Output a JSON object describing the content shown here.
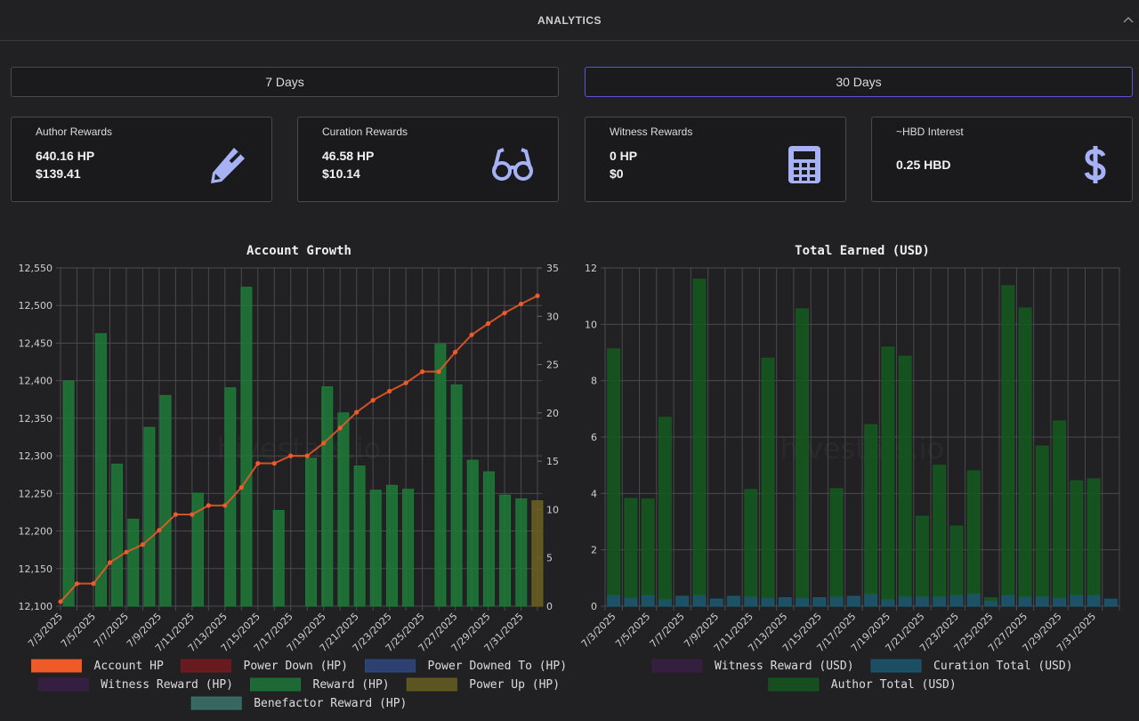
{
  "header": {
    "title": "ANALYTICS"
  },
  "buttons": [
    "7 Days",
    "30 Days"
  ],
  "cards": [
    {
      "label": "Author Rewards",
      "lines": [
        "640.16 HP",
        "$139.41"
      ]
    },
    {
      "label": "Curation Rewards",
      "lines": [
        "46.58 HP",
        "$10.14"
      ]
    },
    {
      "label": "Witness Rewards",
      "lines": [
        "0 HP",
        "$0"
      ]
    },
    {
      "label": "~HBD Interest",
      "lines": [
        "0.25 HBD"
      ]
    }
  ],
  "chart_data": [
    {
      "type": "combo",
      "title": "Account Growth",
      "watermark": "hivestats.io",
      "categories": [
        "7/3/2025",
        null,
        "7/5/2025",
        null,
        "7/7/2025",
        null,
        "7/9/2025",
        null,
        "7/11/2025",
        null,
        "7/13/2025",
        null,
        "7/15/2025",
        null,
        "7/17/2025",
        null,
        "7/19/2025",
        null,
        "7/21/2025",
        null,
        "7/23/2025",
        null,
        "7/25/2025",
        null,
        "7/27/2025",
        null,
        "7/29/2025",
        null,
        "7/31/2025",
        null
      ],
      "ylim": [
        12100,
        12550
      ],
      "yticks": [
        {
          "value": 12100,
          "label": "12,100"
        },
        {
          "value": 12150,
          "label": "12,150"
        },
        {
          "value": 12200,
          "label": "12,200"
        },
        {
          "value": 12250,
          "label": "12,250"
        },
        {
          "value": 12300,
          "label": "12,300"
        },
        {
          "value": 12350,
          "label": "12,350"
        },
        {
          "value": 12400,
          "label": "12,400"
        },
        {
          "value": 12450,
          "label": "12,450"
        },
        {
          "value": 12500,
          "label": "12,500"
        },
        {
          "value": 12550,
          "label": "12,550"
        }
      ],
      "y2lim": [
        0,
        35
      ],
      "y2ticks": [
        0,
        5,
        10,
        15,
        20,
        25,
        30,
        35
      ],
      "grid": true,
      "series": [
        {
          "name": "Account HP",
          "color": "#f05a28",
          "type": "line",
          "values": [
            12106,
            12130,
            12130,
            12158,
            12172,
            12182,
            12201,
            12222,
            12222,
            12234,
            12234,
            12258,
            12290,
            12290,
            12300,
            12300,
            12317,
            12337,
            12358,
            12374,
            12386,
            12397,
            12412,
            12412,
            12438,
            12461,
            12476,
            12490,
            12502,
            12513
          ]
        },
        {
          "name": "Power Down (HP)",
          "color": "#7a1a1e",
          "axis": "y2",
          "values": [
            0,
            0,
            0,
            0,
            0,
            0,
            0,
            0,
            0,
            0,
            0,
            0,
            0,
            0,
            0,
            0,
            0,
            0,
            0,
            0,
            0,
            0,
            0,
            0,
            0,
            0,
            0,
            0,
            0,
            0
          ]
        },
        {
          "name": "Power Downed To (HP)",
          "color": "#2f4a86",
          "axis": "y2",
          "values": [
            0,
            0,
            0,
            0,
            0,
            0,
            0,
            0,
            0,
            0,
            0,
            0,
            0,
            0,
            0,
            0,
            0,
            0,
            0,
            0,
            0,
            0,
            0,
            0,
            0,
            0,
            0,
            0,
            0,
            0
          ]
        },
        {
          "name": "Witness Reward (HP)",
          "color": "#3b1f48",
          "axis": "y2",
          "values": [
            0,
            0,
            0,
            0,
            0,
            0,
            0,
            0,
            0,
            0,
            0,
            0,
            0,
            0,
            0,
            0,
            0,
            0,
            0,
            0,
            0,
            0,
            0,
            0,
            0,
            0,
            0,
            0,
            0,
            0
          ]
        },
        {
          "name": "Reward (HP)",
          "color": "#1d7a38",
          "axis": "y2",
          "values": [
            23.3,
            0,
            28.2,
            14.7,
            9.0,
            18.5,
            21.8,
            0,
            11.7,
            0,
            22.6,
            33.0,
            0,
            9.9,
            0,
            15.3,
            22.7,
            20.0,
            14.5,
            12.0,
            12.5,
            12.1,
            0,
            27.1,
            22.9,
            15.1,
            13.9,
            11.5,
            11.1,
            0
          ]
        },
        {
          "name": "Power Up (HP)",
          "color": "#6b6220",
          "axis": "y2",
          "values": [
            0,
            0,
            0,
            0,
            0,
            0,
            0,
            0,
            0,
            0,
            0,
            0,
            0,
            0,
            0,
            0,
            0,
            0,
            0,
            0,
            0,
            0,
            0,
            0,
            0,
            0,
            0,
            0,
            0,
            10.9
          ]
        },
        {
          "name": "Benefactor Reward (HP)",
          "color": "#3c7a70",
          "axis": "y2",
          "values": [
            0,
            0,
            0,
            0,
            0,
            0,
            0,
            0,
            0,
            0,
            0,
            0,
            0,
            0,
            0,
            0,
            0,
            0,
            0,
            0,
            0,
            0,
            0,
            0,
            0,
            0,
            0,
            0,
            0,
            0
          ]
        }
      ]
    },
    {
      "type": "bar",
      "title": "Total Earned (USD)",
      "watermark": "hivestats.io",
      "stacked": true,
      "categories": [
        "7/3/2025",
        null,
        "7/5/2025",
        null,
        "7/7/2025",
        null,
        "7/9/2025",
        null,
        "7/11/2025",
        null,
        "7/13/2025",
        null,
        "7/15/2025",
        null,
        "7/17/2025",
        null,
        "7/19/2025",
        null,
        "7/21/2025",
        null,
        "7/23/2025",
        null,
        "7/25/2025",
        null,
        "7/27/2025",
        null,
        "7/29/2025",
        null,
        "7/31/2025",
        null
      ],
      "ylim": [
        0,
        12
      ],
      "yticks": [
        0,
        2,
        4,
        6,
        8,
        10,
        12
      ],
      "grid": true,
      "series": [
        {
          "name": "Witness Reward (USD)",
          "color": "#3b1f45",
          "values": [
            0,
            0,
            0,
            0,
            0,
            0,
            0,
            0,
            0,
            0,
            0,
            0,
            0,
            0,
            0,
            0,
            0,
            0,
            0,
            0,
            0,
            0,
            0,
            0,
            0,
            0,
            0,
            0,
            0,
            0
          ]
        },
        {
          "name": "Curation Total (USD)",
          "color": "#1c5a72",
          "values": [
            0.4,
            0.3,
            0.4,
            0.25,
            0.35,
            0.4,
            0.25,
            0.35,
            0.35,
            0.3,
            0.3,
            0.3,
            0.3,
            0.35,
            0.35,
            0.45,
            0.25,
            0.35,
            0.35,
            0.35,
            0.4,
            0.45,
            0.2,
            0.4,
            0.35,
            0.35,
            0.3,
            0.4,
            0.4,
            0.25
          ]
        },
        {
          "name": "Author Total (USD)",
          "color": "#145a1e",
          "values": [
            8.73,
            3.52,
            3.4,
            6.45,
            0,
            11.2,
            0,
            0,
            3.79,
            8.5,
            0,
            10.25,
            0,
            3.82,
            0,
            5.99,
            8.94,
            8.52,
            2.84,
            4.65,
            2.44,
            4.35,
            0.1,
            10.97,
            10.23,
            5.33,
            6.27,
            4.05,
            4.12,
            0
          ]
        }
      ]
    }
  ]
}
